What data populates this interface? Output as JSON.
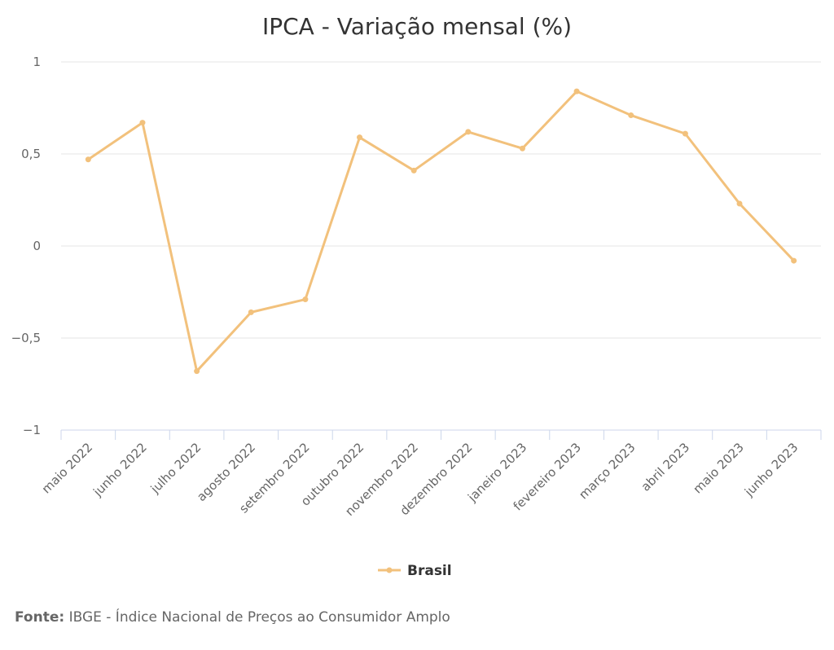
{
  "chart_data": {
    "type": "line",
    "title": "IPCA - Variação mensal (%)",
    "categories": [
      "maio 2022",
      "junho 2022",
      "julho 2022",
      "agosto 2022",
      "setembro 2022",
      "outubro 2022",
      "novembro 2022",
      "dezembro 2022",
      "janeiro 2023",
      "fevereiro 2023",
      "março 2023",
      "abril 2023",
      "maio 2023",
      "junho 2023"
    ],
    "series": [
      {
        "name": "Brasil",
        "color": "#f2c17c",
        "values": [
          0.47,
          0.67,
          -0.68,
          -0.36,
          -0.29,
          0.59,
          0.41,
          0.62,
          0.53,
          0.84,
          0.71,
          0.61,
          0.23,
          -0.08
        ]
      }
    ],
    "ylim": [
      -1,
      1
    ],
    "yticks": [
      1,
      0.5,
      0,
      -0.5,
      -1
    ],
    "ytick_labels": [
      "1",
      "0,5",
      "0",
      "−0,5",
      "−1"
    ],
    "grid": true,
    "legend_position": "bottom-center"
  },
  "source": {
    "label": "Fonte:",
    "text": " IBGE - Índice Nacional de Preços ao Consumidor Amplo"
  }
}
